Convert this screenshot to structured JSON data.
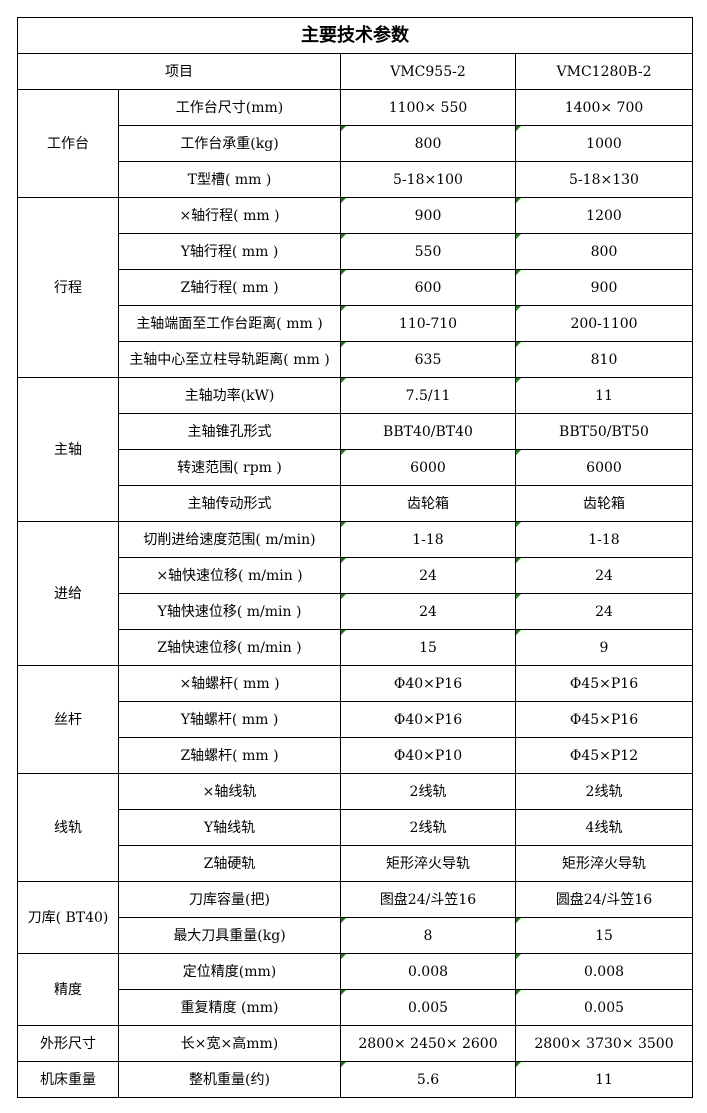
{
  "title": "主要技术参数",
  "header": {
    "item": "项目",
    "model1": "VMC955-2",
    "model2": "VMC1280B-2"
  },
  "marker_color": "#1f7a1f",
  "groups": [
    {
      "category": "工作台",
      "rows": [
        [
          "工作台尺寸(mm)",
          "1100× 550",
          "1400× 700"
        ],
        [
          "工作台承重(kg)",
          "800",
          "1000"
        ],
        [
          "T型槽( mm )",
          "5-18×100",
          "5-18×130"
        ]
      ]
    },
    {
      "category": "行程",
      "rows": [
        [
          "×轴行程( mm )",
          "900",
          "1200"
        ],
        [
          "Y轴行程( mm )",
          "550",
          "800"
        ],
        [
          "Z轴行程( mm )",
          "600",
          "900"
        ],
        [
          "主轴端面至工作台距离( mm )",
          "110-710",
          "200-1100"
        ],
        [
          "主轴中心至立柱导轨距离( mm )",
          "635",
          "810"
        ]
      ]
    },
    {
      "category": "主轴",
      "rows": [
        [
          "主轴功率(kW)",
          "7.5/11",
          "11"
        ],
        [
          "主轴锥孔形式",
          "BBT40/BT40",
          "BBT50/BT50"
        ],
        [
          "转速范围( rpm )",
          "6000",
          "6000"
        ],
        [
          "主轴传动形式",
          "齿轮箱",
          "齿轮箱"
        ]
      ]
    },
    {
      "category": "进给",
      "rows": [
        [
          "切削进给速度范围( m/min)",
          "1-18",
          "1-18"
        ],
        [
          "×轴快速位移( m/min )",
          "24",
          "24"
        ],
        [
          "Y轴快速位移( m/min )",
          "24",
          "24"
        ],
        [
          "Z轴快速位移( m/min )",
          "15",
          "9"
        ]
      ]
    },
    {
      "category": "丝杆",
      "rows": [
        [
          "×轴螺杆( mm )",
          "Φ40×P16",
          "Φ45×P16"
        ],
        [
          "Y轴螺杆( mm )",
          "Φ40×P16",
          "Φ45×P16"
        ],
        [
          "Z轴螺杆( mm )",
          "Φ40×P10",
          "Φ45×P12"
        ]
      ]
    },
    {
      "category": "线轨",
      "rows": [
        [
          "×轴线轨",
          "2线轨",
          "2线轨"
        ],
        [
          "Y轴线轨",
          "2线轨",
          "4线轨"
        ],
        [
          "Z轴硬轨",
          "矩形淬火导轨",
          "矩形淬火导轨"
        ]
      ]
    },
    {
      "category": "刀库( BT40)",
      "rows": [
        [
          "刀库容量(把)",
          "图盘24/斗笠16",
          "圆盘24/斗笠16"
        ],
        [
          "最大刀具重量(kg)",
          "8",
          "15"
        ]
      ]
    },
    {
      "category": "精度",
      "rows": [
        [
          "定位精度(mm)",
          "0.008",
          "0.008"
        ],
        [
          "重复精度 (mm)",
          "0.005",
          "0.005"
        ]
      ]
    },
    {
      "category": "外形尺寸",
      "rows": [
        [
          "长×宽×高mm)",
          "2800× 2450× 2600",
          "2800× 3730× 3500"
        ]
      ]
    },
    {
      "category": "机床重量",
      "rows": [
        [
          "整机重量(约)",
          "5.6",
          "11"
        ]
      ]
    }
  ]
}
